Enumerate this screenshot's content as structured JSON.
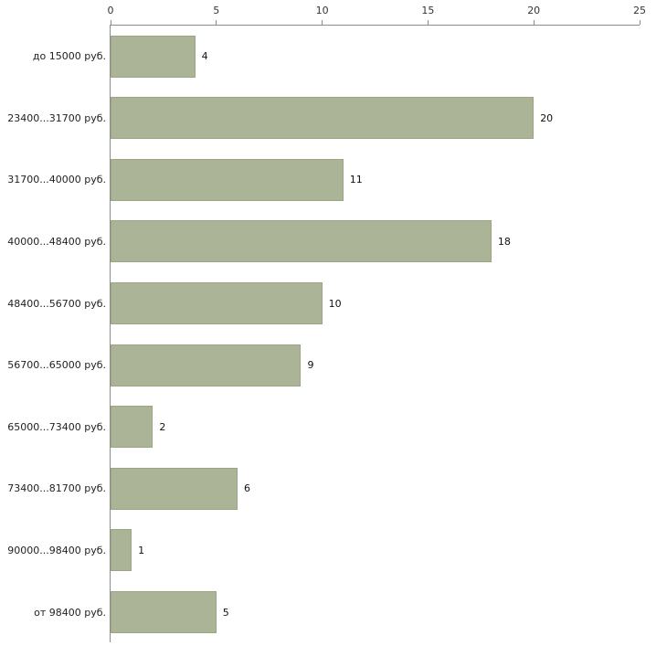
{
  "chart_data": {
    "type": "bar",
    "orientation": "horizontal",
    "title": "",
    "xlabel": "",
    "ylabel": "",
    "categories": [
      "до 15000 руб.",
      "23400...31700 руб.",
      "31700...40000 руб.",
      "40000...48400 руб.",
      "48400...56700 руб.",
      "56700...65000 руб.",
      "65000...73400 руб.",
      "73400...81700 руб.",
      "90000...98400 руб.",
      "от 98400 руб."
    ],
    "values": [
      4,
      20,
      11,
      18,
      10,
      9,
      2,
      6,
      1,
      5
    ],
    "xlim": [
      0,
      25
    ],
    "xticks": [
      0,
      5,
      10,
      15,
      20,
      25
    ],
    "value_labels": true,
    "grid": false,
    "legend": "none",
    "colors": {
      "bar_fill": "#abb496",
      "bar_border": "#9aa582",
      "axis_line": "#8c8c8c",
      "tick_text": "#333333",
      "category_text": "#222222",
      "value_text": "#111111",
      "background": "#ffffff"
    }
  }
}
